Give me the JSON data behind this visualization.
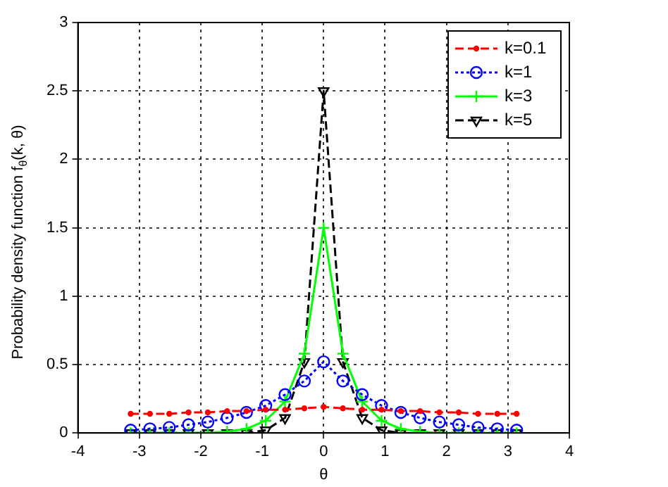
{
  "chart_data": {
    "type": "line",
    "xlabel": "θ",
    "ylabel": "Probability density function f$_{θ}$(k, θ)",
    "x": [
      -3.1416,
      -2.8274,
      -2.5133,
      -2.1991,
      -1.885,
      -1.5708,
      -1.2566,
      -0.9425,
      -0.6283,
      -0.3142,
      0,
      0.3142,
      0.6283,
      0.9425,
      1.2566,
      1.5708,
      1.885,
      2.1991,
      2.5133,
      2.8274,
      3.1416
    ],
    "series": [
      {
        "name": "k=0.1",
        "color": "#ff0000",
        "marker": "circle",
        "line_style": "dashed",
        "values": [
          0.14,
          0.14,
          0.14,
          0.15,
          0.15,
          0.16,
          0.16,
          0.17,
          0.17,
          0.18,
          0.19,
          0.18,
          0.17,
          0.17,
          0.16,
          0.16,
          0.15,
          0.15,
          0.14,
          0.14,
          0.14
        ]
      },
      {
        "name": "k=1",
        "color": "#0000ff",
        "marker": "circle",
        "line_style": "dotted",
        "values": [
          0.02,
          0.03,
          0.04,
          0.06,
          0.08,
          0.11,
          0.15,
          0.2,
          0.28,
          0.38,
          0.52,
          0.38,
          0.28,
          0.2,
          0.15,
          0.11,
          0.08,
          0.06,
          0.04,
          0.03,
          0.02
        ]
      },
      {
        "name": "k=3",
        "color": "#00ff00",
        "marker": "cross",
        "line_style": "solid",
        "values": [
          0,
          0,
          0,
          0,
          0,
          0.01,
          0.03,
          0.09,
          0.23,
          0.58,
          1.5,
          0.58,
          0.23,
          0.09,
          0.03,
          0.01,
          0,
          0,
          0,
          0,
          0
        ]
      },
      {
        "name": "k=5",
        "color": "#000000",
        "marker": "triangle",
        "line_style": "dashed",
        "values": [
          0,
          0,
          0,
          0,
          0,
          0,
          0,
          0.02,
          0.11,
          0.52,
          2.5,
          0.52,
          0.11,
          0.02,
          0,
          0,
          0,
          0,
          0,
          0,
          0
        ]
      }
    ],
    "xlim": [
      -4,
      4
    ],
    "xticks": [
      -4,
      -3,
      -2,
      -1,
      0,
      1,
      2,
      3,
      4
    ],
    "ylim": [
      0,
      3
    ],
    "yticks": [
      0,
      0.5,
      1,
      1.5,
      2,
      2.5,
      3
    ],
    "grid": true,
    "legend": "top right"
  }
}
